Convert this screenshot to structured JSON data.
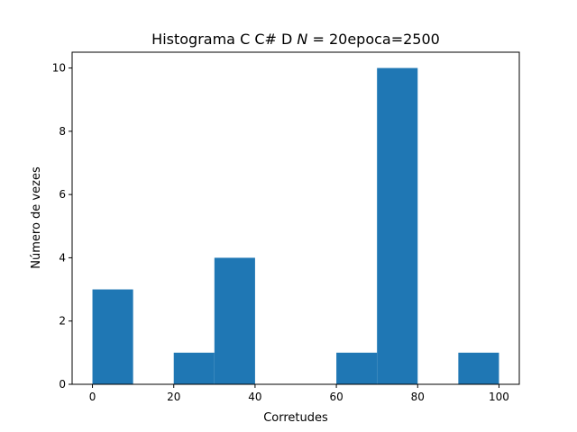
{
  "chart_data": {
    "type": "bar",
    "title": "Histograma C C# D",
    "title_math": "N",
    "title_suffix": " = 20epoca=2500",
    "xlabel": "Corretudes",
    "ylabel": "Número de vezes",
    "xlim": [
      -5,
      105
    ],
    "ylim": [
      0,
      10.5
    ],
    "x_ticks": [
      0,
      20,
      40,
      60,
      80,
      100
    ],
    "y_ticks": [
      0,
      2,
      4,
      6,
      8,
      10
    ],
    "bins": [
      {
        "x0": 0,
        "x1": 10,
        "count": 3
      },
      {
        "x0": 10,
        "x1": 20,
        "count": 0
      },
      {
        "x0": 20,
        "x1": 30,
        "count": 1
      },
      {
        "x0": 30,
        "x1": 40,
        "count": 4
      },
      {
        "x0": 40,
        "x1": 50,
        "count": 0
      },
      {
        "x0": 50,
        "x1": 60,
        "count": 0
      },
      {
        "x0": 60,
        "x1": 70,
        "count": 1
      },
      {
        "x0": 70,
        "x1": 80,
        "count": 10
      },
      {
        "x0": 80,
        "x1": 90,
        "count": 0
      },
      {
        "x0": 90,
        "x1": 100,
        "count": 1
      }
    ],
    "bar_color": "#1f77b4",
    "grid": false
  }
}
